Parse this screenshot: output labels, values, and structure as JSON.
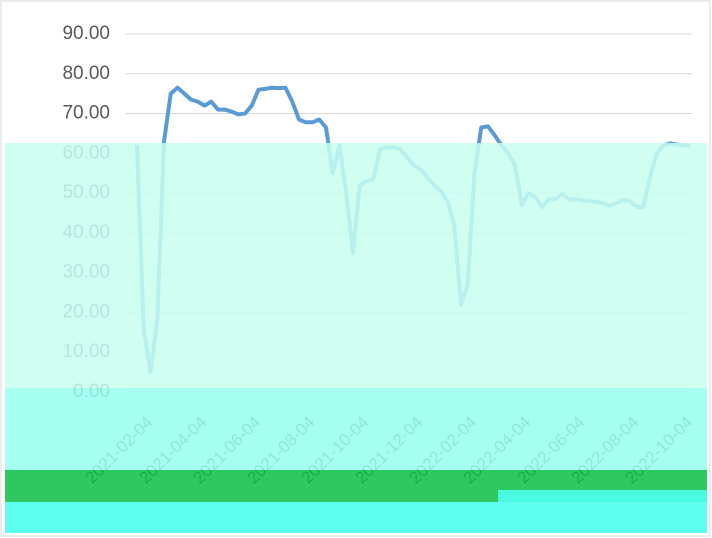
{
  "chart_data": {
    "type": "line",
    "categories": [
      null,
      null,
      "2021-02-04",
      null,
      null,
      null,
      null,
      null,
      null,
      null,
      "2021-04-04",
      null,
      null,
      null,
      null,
      null,
      null,
      null,
      "2021-06-04",
      null,
      null,
      null,
      null,
      null,
      null,
      null,
      "2021-08-04",
      null,
      null,
      null,
      null,
      null,
      null,
      null,
      "2021-10-04",
      null,
      null,
      null,
      null,
      null,
      null,
      null,
      "2021-12-04",
      null,
      null,
      null,
      null,
      null,
      null,
      null,
      "2022-02-04",
      null,
      null,
      null,
      null,
      null,
      null,
      null,
      "2022-04-04",
      null,
      null,
      null,
      null,
      null,
      null,
      null,
      "2022-06-04",
      null,
      null,
      null,
      null,
      null,
      null,
      null,
      "2022-08-04",
      null,
      null,
      null,
      null,
      null,
      null,
      null,
      "2022-10-04"
    ],
    "series": [
      {
        "color": "#5b9bd5",
        "values": [
          62,
          15.6,
          5,
          18,
          63,
          75,
          76.5,
          75,
          73.5,
          73,
          72,
          73,
          71,
          71,
          70.5,
          69.8,
          70,
          72,
          76,
          76.2,
          76.5,
          76.4,
          76.5,
          73,
          68.5,
          67.8,
          67.8,
          68.5,
          66.5,
          55,
          62,
          50,
          35,
          52,
          53,
          53.5,
          61,
          61.5,
          61.5,
          61,
          59,
          57,
          56,
          54,
          52,
          50.5,
          48,
          42,
          22,
          27,
          55,
          66.5,
          66.8,
          64.5,
          62,
          60,
          57,
          47,
          50,
          49,
          46.5,
          48.5,
          48.5,
          49.8,
          48.3,
          48.5,
          48.2,
          48,
          47.8,
          47.5,
          46.8,
          47.5,
          48.3,
          48,
          46.5,
          46.5,
          54,
          60,
          62,
          62.5,
          62.2,
          62,
          62
        ]
      }
    ],
    "ylim": [
      0,
      90
    ],
    "yticks": [
      {
        "value": 0,
        "label": "0.00"
      },
      {
        "value": 10,
        "label": "10.00"
      },
      {
        "value": 20,
        "label": "20.00"
      },
      {
        "value": 30,
        "label": "30.00"
      },
      {
        "value": 40,
        "label": "40.00"
      },
      {
        "value": 50,
        "label": "50.00"
      },
      {
        "value": 60,
        "label": "60.00"
      },
      {
        "value": 70,
        "label": "70.00"
      },
      {
        "value": 80,
        "label": "80.00"
      },
      {
        "value": 90,
        "label": "90.00"
      }
    ],
    "grid": true
  }
}
